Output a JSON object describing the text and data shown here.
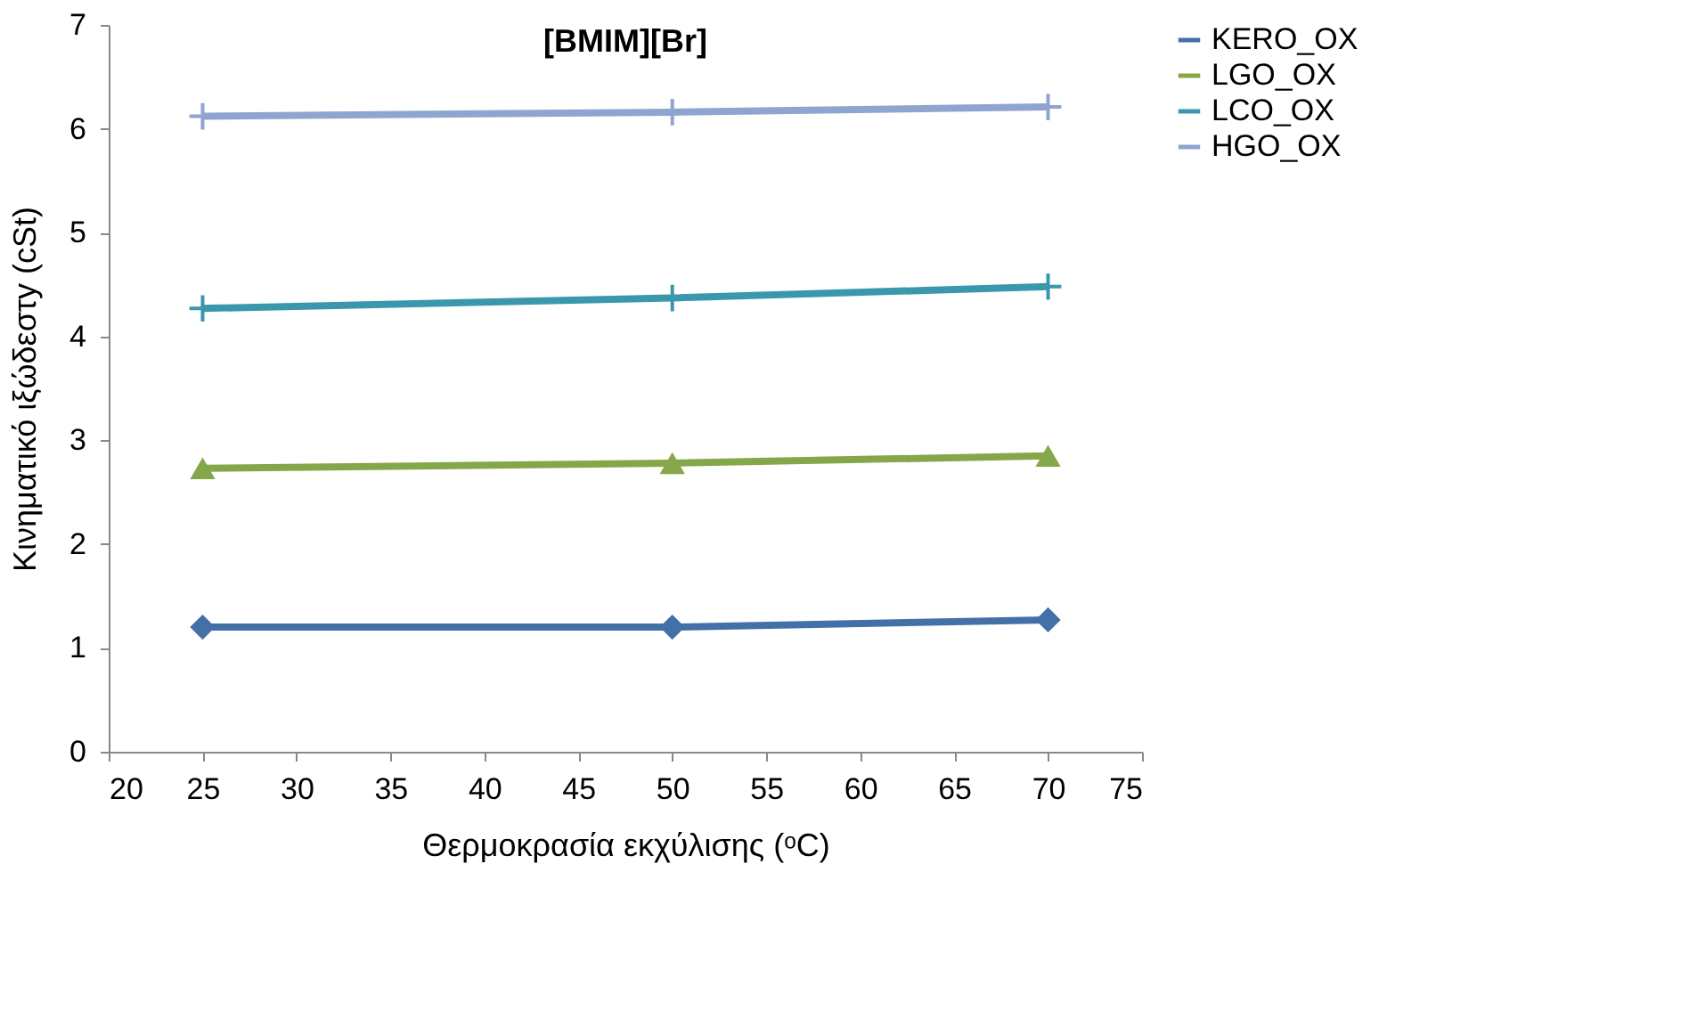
{
  "chart_data": {
    "type": "line",
    "title": "[BMIM][Br]",
    "xlabel": "Θερμοκρασία εκχύλισης (ᵒC)",
    "ylabel": "Κινηματικό ιξώδεστy (cSt)",
    "x": [
      25,
      50,
      70
    ],
    "series": [
      {
        "name": "KERO_OX",
        "color": "#4470a8",
        "marker": "diamond",
        "values": [
          1.2,
          1.2,
          1.27
        ]
      },
      {
        "name": "LGO_OX",
        "color": "#86a64a",
        "marker": "triangle",
        "values": [
          2.73,
          2.78,
          2.85
        ]
      },
      {
        "name": "LCO_OX",
        "color": "#3b97ab",
        "marker": "cross",
        "values": [
          4.27,
          4.37,
          4.48
        ]
      },
      {
        "name": "HGO_OX",
        "color": "#8fa5cf",
        "marker": "cross",
        "values": [
          6.12,
          6.16,
          6.21
        ]
      }
    ],
    "xlim": [
      20,
      75
    ],
    "xticks": [
      20,
      25,
      30,
      35,
      40,
      45,
      50,
      55,
      60,
      65,
      70,
      75
    ],
    "ylim": [
      0,
      7
    ],
    "yticks": [
      0,
      1,
      2,
      3,
      4,
      5,
      6,
      7
    ],
    "grid": false,
    "legend": "right",
    "line_style": "solid"
  }
}
